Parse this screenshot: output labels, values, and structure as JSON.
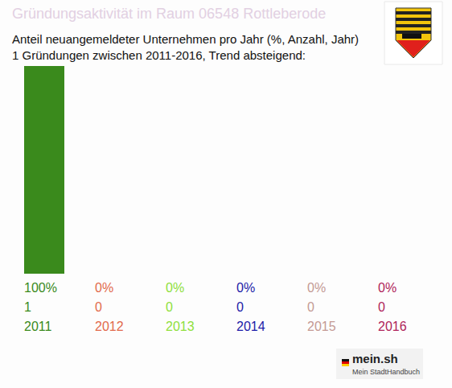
{
  "chart_data": {
    "type": "bar",
    "title": "Gründungsaktivität im Raum 06548 Rottleberode",
    "subtitle": [
      "Anteil neuangemeldeter Unternehmen pro Jahr (%, Anzahl, Jahr)",
      "1 Gründungen zwischen 2011-2016, Trend absteigend:"
    ],
    "categories": [
      "2011",
      "2012",
      "2013",
      "2014",
      "2015",
      "2016"
    ],
    "values": [
      100,
      0,
      0,
      0,
      0,
      0
    ],
    "value_labels": [
      "100%",
      "0%",
      "0%",
      "0%",
      "0%",
      "0%"
    ],
    "counts": [
      1,
      0,
      0,
      0,
      0,
      0
    ],
    "colors": [
      "#3a8a1c",
      "#e26a4c",
      "#8fe03c",
      "#1c1ca8",
      "#c49a94",
      "#b0245a"
    ],
    "ylim": [
      0,
      100
    ],
    "grid": false,
    "data_labels": true,
    "tick_labels": "x",
    "annotations": [
      "mein.sh",
      "Mein StadtHandbuch"
    ]
  }
}
